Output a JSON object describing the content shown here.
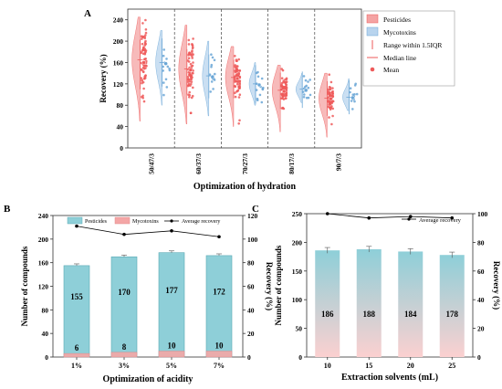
{
  "chart_data": [
    {
      "panel": "A",
      "type": "violin-scatter",
      "xlabel": "Optimization of hydration",
      "ylabel": "Recovery (%)",
      "categories": [
        "50/47/3",
        "60/37/3",
        "70/27/3",
        "80/17/3",
        "90/7/3"
      ],
      "ylim": [
        0,
        260
      ],
      "yticks": [
        0,
        40,
        80,
        120,
        160,
        200,
        240
      ],
      "legend_position": "top-right",
      "legend": [
        "Pesticides",
        "Mycotoxins",
        "Range within 1.5IQR",
        "Median line",
        "Mean"
      ],
      "series": [
        {
          "name": "Pesticides",
          "color": "#f4a3a3",
          "dot_color": "#ee5a5a",
          "median": [
            165,
            148,
            132,
            108,
            93
          ],
          "mean": [
            160,
            146,
            130,
            106,
            92
          ],
          "q1": [
            135,
            125,
            118,
            98,
            85
          ],
          "q3": [
            178,
            160,
            140,
            116,
            100
          ],
          "whisker_low": [
            50,
            45,
            40,
            30,
            20
          ],
          "whisker_high": [
            245,
            230,
            190,
            155,
            140
          ]
        },
        {
          "name": "Mycotoxins",
          "color": "#b8d4ee",
          "dot_color": "#6aa6d6",
          "median": [
            160,
            135,
            120,
            110,
            95
          ],
          "mean": [
            158,
            133,
            118,
            108,
            94
          ],
          "q1": [
            140,
            118,
            108,
            100,
            88
          ],
          "q3": [
            180,
            150,
            130,
            118,
            102
          ],
          "whisker_low": [
            80,
            60,
            80,
            85,
            70
          ],
          "whisker_high": [
            220,
            200,
            160,
            140,
            130
          ]
        }
      ]
    },
    {
      "panel": "B",
      "type": "stacked-bar-line",
      "xlabel": "Optimization of acidity",
      "ylabel": "Number of compounds",
      "y2label": "Recovery (%)",
      "categories": [
        "1%",
        "3%",
        "5%",
        "7%"
      ],
      "ylim": [
        0,
        240
      ],
      "yticks": [
        0,
        40,
        80,
        120,
        160,
        200,
        240
      ],
      "y2lim": [
        0,
        120
      ],
      "y2ticks": [
        0,
        20,
        40,
        60,
        80,
        100,
        120
      ],
      "legend": [
        "Pesticides",
        "Mycotoxins",
        "Average recovery"
      ],
      "series": [
        {
          "name": "Pesticides",
          "color": "#8ecfd8",
          "values": [
            155,
            170,
            177,
            172
          ],
          "labels": [
            "155",
            "170",
            "177",
            "172"
          ]
        },
        {
          "name": "Mycotoxins",
          "color": "#f4a6a6",
          "values": [
            6,
            8,
            10,
            10
          ],
          "labels": [
            "6",
            "8",
            "10",
            "10"
          ]
        },
        {
          "name": "Average recovery",
          "color": "#000000",
          "axis": "right",
          "values": [
            111,
            104,
            107,
            102
          ]
        }
      ]
    },
    {
      "panel": "C",
      "type": "bar-line",
      "xlabel": "Extraction solvents (mL)",
      "ylabel": "Number of compounds",
      "y2label": "Recovery (%)",
      "categories": [
        "10",
        "15",
        "20",
        "25"
      ],
      "ylim": [
        0,
        250
      ],
      "yticks": [
        0,
        50,
        100,
        150,
        200,
        250
      ],
      "y2lim": [
        0,
        100
      ],
      "y2ticks": [
        0,
        20,
        40,
        60,
        80,
        100
      ],
      "legend": [
        "Average recovery"
      ],
      "series": [
        {
          "name": "Number of compounds",
          "color_top": "#8ecfd8",
          "color_bottom": "#fbd0d0",
          "values": [
            186,
            188,
            184,
            178
          ],
          "labels": [
            "186",
            "188",
            "184",
            "178"
          ]
        },
        {
          "name": "Average recovery",
          "color": "#000000",
          "axis": "right",
          "values": [
            100,
            97,
            98,
            97
          ]
        }
      ]
    }
  ]
}
